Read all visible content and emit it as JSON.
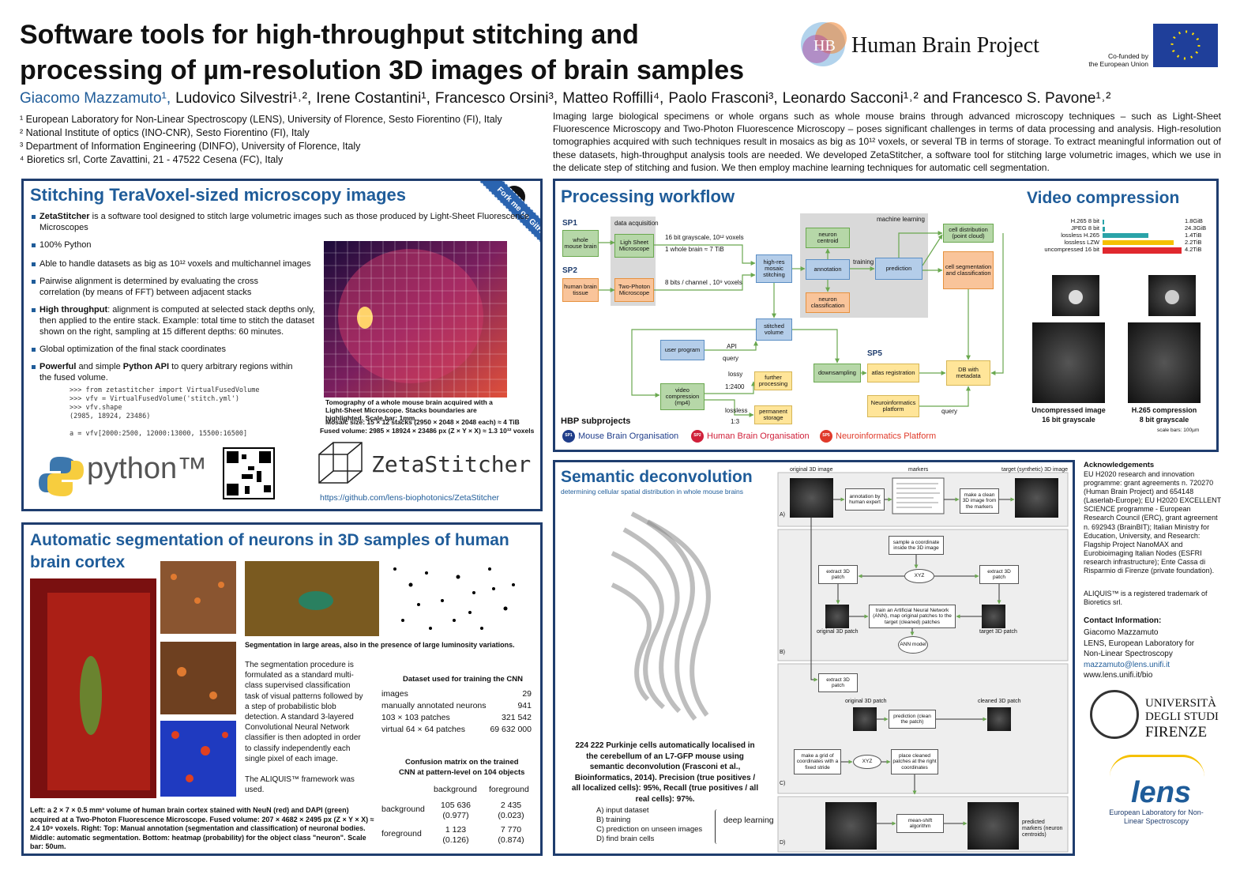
{
  "header": {
    "title": [
      "Software tools for high-throughput stitching and",
      "processing of µm-resolution 3D images of brain samples"
    ],
    "authors": [
      "Giacomo Mazzamuto¹,",
      "Ludovico Silvestri¹˒²,",
      "Irene Costantini¹,",
      "Francesco Orsini³,",
      "Matteo Roffilli⁴,",
      "Paolo Frasconi³,",
      "Leonardo Sacconi¹˒²",
      "and Francesco S. Pavone¹˒²"
    ],
    "affiliations": [
      "¹ European Laboratory for Non-Linear Spectroscopy (LENS), University of Florence, Sesto Fiorentino (FI), Italy",
      "² National Institute of optics (INO-CNR), Sesto Fiorentino (FI), Italy",
      "³ Department of Information Engineering (DINFO), University of Florence, Italy",
      "⁴ Bioretics srl, Corte Zavattini, 21 - 47522 Cesena (FC), Italy"
    ],
    "abstract": "Imaging large biological specimens or whole organs such as whole mouse brains through advanced microscopy techniques – such as Light-Sheet Fluorescence Microscopy and Two-Photon Fluorescence Microscopy – poses significant challenges in terms of data processing and analysis. High-resolution tomographies acquired with such techniques result in mosaics as big as 10¹² voxels, or several TB in terms of storage. To extract meaningful information out of these datasets, high-throughput analysis tools are needed. We developed ZetaStitcher, a software tool for stitching large volumetric images, which we use in the delicate step of stitching and fusion. We then employ machine learning techniques for automatic cell segmentation."
  },
  "logos": {
    "hbp": "Human Brain Project",
    "eu": [
      "Co-funded by",
      "the European Union"
    ]
  },
  "stitching": {
    "title": "Stitching TeraVoxel-sized microscopy images",
    "fork": "Fork me on GitHub",
    "bullets": [
      [
        {
          "strong": "ZetaStitcher"
        },
        {
          "text": " is a software tool designed to stitch large volumetric images such as those produced by Light-Sheet Fluorescence Microscopes"
        }
      ],
      [
        {
          "text": "100% Python"
        }
      ],
      [
        {
          "text": "Able to handle datasets as big as 10¹² voxels and multichannel images"
        }
      ],
      [
        {
          "text": "Pairwise alignment is determined by evaluating the cross correlation (by means of FFT) between adjacent stacks"
        }
      ],
      [
        {
          "strong": "High throughput"
        },
        {
          "text": ": alignment is computed at selected stack depths only, then applied to the entire stack. Example: total time to stitch the dataset shown on the right, sampling at 15 different depths: 60 minutes."
        }
      ],
      [
        {
          "text": "Global optimization of the final stack coordinates"
        }
      ],
      [
        {
          "strong": "Powerful"
        },
        {
          "text": " and simple "
        },
        {
          "strong": "Python API"
        },
        {
          "text": " to query arbitrary regions within the fused volume."
        }
      ]
    ],
    "code": [
      ">>> from zetastitcher import VirtualFusedVolume",
      ">>> vfv = VirtualFusedVolume('stitch.yml')",
      ">>> vfv.shape",
      "(2985, 18924, 23486)",
      "a = vfv[2000:2500, 12000:13000, 15500:16500]"
    ],
    "caption": [
      "Tomography of a whole mouse brain acquired with a Light-Sheet Microscope. Stacks boundaries are highlighted. Scale bar: 1mm.",
      "Mosaic size: 15 × 12 stacks (2950 × 2048 × 2048 each) ≈ 4 TiB",
      "Fused volume: 2985 × 18924 × 23486 px (Z × Y × X) ≈ 1.3 10¹² voxels"
    ],
    "python": "python™",
    "logo": "ZetaStitcher",
    "url": "https://github.com/lens-biophotonics/ZetaStitcher"
  },
  "segmentation": {
    "title": "Automatic segmentation of neurons in 3D samples of human brain cortex",
    "caption_areas": "Segmentation in large areas, also in the presence of large luminosity variations.",
    "paragraph": [
      "The segmentation procedure is formulated as a standard multi-class supervised classification task of visual patterns followed by a step of probabilistic blob detection. A standard 3-layered Convolutional Neural Network classifier is then adopted in order to classify independently each single pixel of each image.",
      "The ALIQUIS™ framework was used."
    ],
    "dataset": {
      "title": "Dataset used for training the CNN",
      "rows": [
        [
          "images",
          "29"
        ],
        [
          "manually annotated neurons",
          "941"
        ],
        [
          "103 × 103 patches",
          "321 542"
        ],
        [
          "virtual 64 × 64 patches",
          "69 632 000"
        ]
      ]
    },
    "confusion": {
      "title": [
        "Confusion matrix on the trained",
        "CNN at pattern-level on 104 objects"
      ],
      "columns": [
        "background",
        "foreground"
      ],
      "rows": [
        [
          "background",
          "105 636",
          "(0.977)",
          "2 435",
          "(0.023)"
        ],
        [
          "foreground",
          "1 123",
          "(0.126)",
          "7 770",
          "(0.874)"
        ]
      ]
    },
    "caption": "Left: a 2 × 7 × 0.5 mm³ volume of human brain cortex stained with NeuN (red) and DAPI (green) acquired at a Two-Photon Fluorescence Microscope. Fused volume: 207 × 4682 × 2495 px (Z × Y × X) ≈ 2.4 10⁹ voxels. Right: Top: Manual annotation (segmentation and classification) of neuronal bodies. Middle: automatic segmentation. Bottom: heatmap (probability) for the object class \"neuron\". Scale bar: 50um."
  },
  "workflow": {
    "title": "Processing workflow",
    "labels": [
      "SP1",
      "whole mouse brain",
      "data acquisition",
      "Ligh Sheet Microscope",
      "SP2",
      "human brain tissue",
      "Two-Photon Microscope",
      "16 bit grayscale, 10¹² voxels",
      "1 whole brain ≈ 7 TiB",
      "8 bits / channel , 10⁹ voxels",
      "high-res mosaic stitching",
      "machine learning",
      "neuron centroid",
      "annotation",
      "training",
      "prediction",
      "neuron classification",
      "cell distribution (point cloud)",
      "cell segmentation and classification",
      "stitched volume",
      "user program",
      "API",
      "query",
      "video compression (mp4)",
      "lossy",
      "1:2400",
      "lossless",
      "1:3",
      "further processing",
      "permanent storage",
      "downsampling",
      "SP5",
      "atlas registration",
      "DB with metadata",
      "Neuroinformatics platform",
      "query"
    ],
    "subprojects_title": "HBP subprojects",
    "subprojects": [
      {
        "tag": "SP1",
        "name": "Mouse Brain Organisation"
      },
      {
        "tag": "SP2",
        "name": "Human Brain Organisation"
      },
      {
        "tag": "SP5",
        "name": "Neuroinformatics Platform"
      }
    ]
  },
  "video": {
    "title": "Video compression",
    "bars": [
      {
        "name": "H.265 8 bit",
        "size": "1.8GiB"
      },
      {
        "name": "JPEG 8 bit",
        "size": "24.3GiB"
      },
      {
        "name": "lossless H.265",
        "size": "1.4TiB"
      },
      {
        "name": "lossless LZW",
        "size": "2.2TiB"
      },
      {
        "name": "uncompressed 16 bit",
        "size": "4.2TiB"
      }
    ],
    "captions": [
      [
        "Uncompressed image",
        "16 bit grayscale"
      ],
      [
        "H.265 compression",
        "8 bit grayscale"
      ]
    ],
    "scale": "scale bars: 100µm"
  },
  "semantic": {
    "title": "Semantic deconvolution",
    "subtitle": "determining cellular spatial distribution in whole mouse brains",
    "labels": [
      "original 3D image",
      "markers",
      "target (synthetic) 3D image",
      "annotation by human expert",
      "make a clean 3D image from the markers",
      "A)",
      "sample a coordinate inside the 3D image",
      "extract 3D patch",
      "XYZ",
      "extract 3D patch",
      "train an Artificial Neural Network (ANN), map original patches to the target (cleaned) patches",
      "original 3D patch",
      "target 3D patch",
      "ANN model",
      "B)",
      "extract 3D patch",
      "original 3D patch",
      "cleaned 3D patch",
      "prediction (clean the patch)",
      "make a grid of coordinates with a fixed stride",
      "XYZ",
      "place cleaned patches at the right coordinates",
      "C)",
      "mean-shift algorithm",
      "predicted markers (neuron centroids)",
      "D)"
    ],
    "caption": "224 222 Purkinje cells automatically localised in the cerebellum of an L7-GFP mouse using semantic deconvolution (Frasconi et al., Bioinformatics, 2014). Precision (true positives / all localized cells): 95%, Recall (true positives / all real cells): 97%.",
    "steps": [
      "A) input dataset",
      "B) training",
      "C) prediction on unseen images",
      "D) find brain cells"
    ],
    "deep_learning": "deep learning"
  },
  "sidebar": {
    "ack_title": "Acknowledgements",
    "ack": "EU H2020 research and innovation programme: grant agreements n. 720270 (Human Brain Project) and 654148 (Laserlab-Europe); EU H2020 EXCELLENT SCIENCE programme - European Research Council (ERC), grant agreement n. 692943 (BrainBIT); Italian Ministry for Education, University, and Research: Flagship Project NanoMAX and Eurobioimaging Italian Nodes (ESFRI research infrastructure); Ente Cassa di Risparmio di Firenze (private foundation).",
    "trademark": "ALIQUIS™ is a registered trademark of Bioretics srl.",
    "contact_title": "Contact Information:",
    "contact": [
      "Giacomo Mazzamuto",
      "LENS, European Laboratory for Non-Linear Spectroscopy"
    ],
    "email": "mazzamuto@lens.unifi.it",
    "web": "www.lens.unifi.it/bio",
    "unifi": [
      "UNIVERSITÀ",
      "DEGLI STUDI",
      "FIRENZE"
    ],
    "lens": "lens",
    "lens_full": "European Laboratory for Non-Linear Spectroscopy"
  }
}
